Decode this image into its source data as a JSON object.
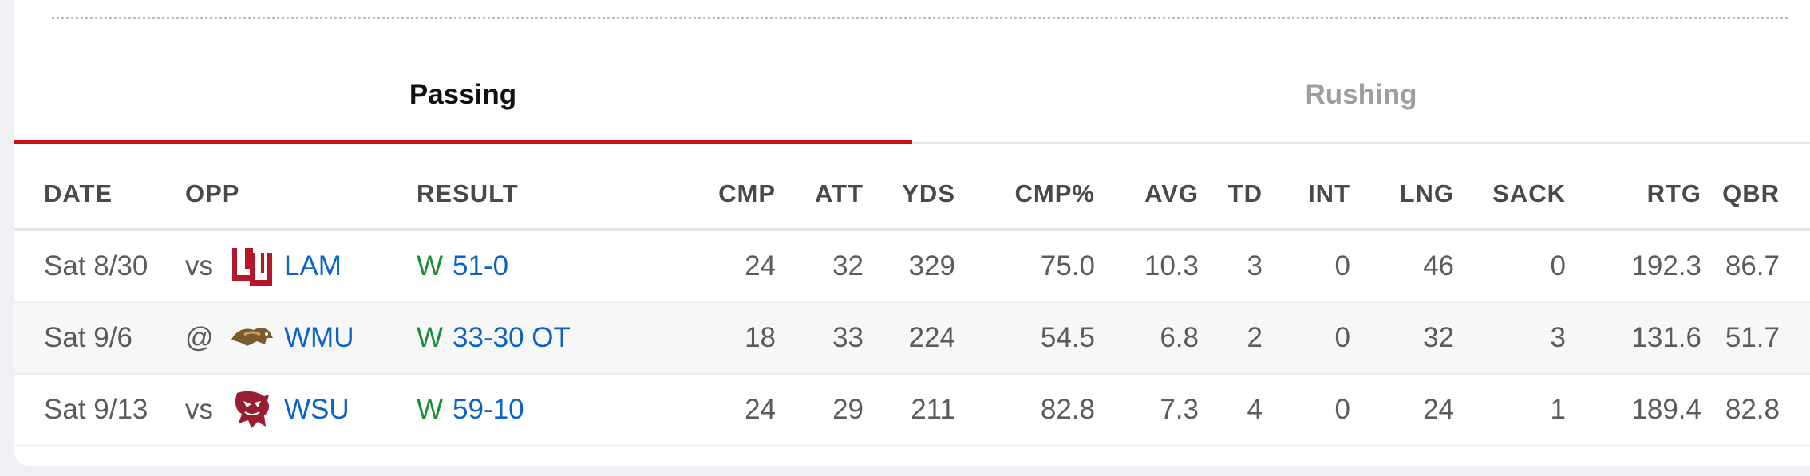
{
  "tabs": [
    {
      "label": "Passing",
      "active": true
    },
    {
      "label": "Rushing",
      "active": false
    }
  ],
  "columns": [
    "DATE",
    "OPP",
    "RESULT",
    "CMP",
    "ATT",
    "YDS",
    "CMP%",
    "AVG",
    "TD",
    "INT",
    "LNG",
    "SACK",
    "RTG",
    "QBR"
  ],
  "rows": [
    {
      "date": "Sat 8/30",
      "prefix": "vs",
      "logo": "lamar-logo",
      "team": "LAM",
      "wl": "W",
      "score": "51-0",
      "cmp": "24",
      "att": "32",
      "yds": "329",
      "pct": "75.0",
      "avg": "10.3",
      "td": "3",
      "int": "0",
      "lng": "46",
      "sack": "0",
      "rtg": "192.3",
      "qbr": "86.7"
    },
    {
      "date": "Sat 9/6",
      "prefix": "@",
      "logo": "wmu-bronco-logo",
      "team": "WMU",
      "wl": "W",
      "score": "33-30 OT",
      "cmp": "18",
      "att": "33",
      "yds": "224",
      "pct": "54.5",
      "avg": "6.8",
      "td": "2",
      "int": "0",
      "lng": "32",
      "sack": "3",
      "rtg": "131.6",
      "qbr": "51.7"
    },
    {
      "date": "Sat 9/13",
      "prefix": "vs",
      "logo": "wsu-cougar-logo",
      "team": "WSU",
      "wl": "W",
      "score": "59-10",
      "cmp": "24",
      "att": "29",
      "yds": "211",
      "pct": "82.8",
      "avg": "7.3",
      "td": "4",
      "int": "0",
      "lng": "24",
      "sack": "1",
      "rtg": "189.4",
      "qbr": "82.8"
    }
  ],
  "colors": {
    "accent": "#cc1212",
    "link": "#0b63c5",
    "win": "#1a8d35"
  }
}
